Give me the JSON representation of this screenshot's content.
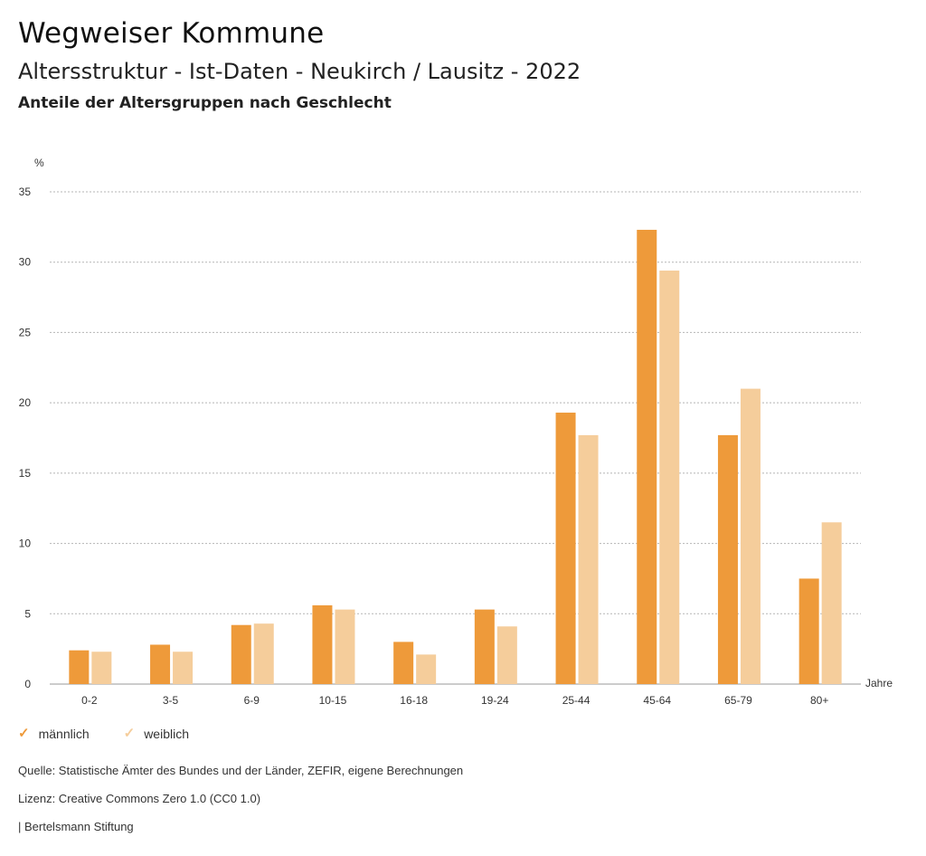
{
  "header": {
    "title": "Wegweiser Kommune",
    "subtitle": "Altersstruktur - Ist-Daten - Neukirch / Lausitz - 2022",
    "subsubtitle": "Anteile der Altersgruppen nach Geschlecht"
  },
  "chart_data": {
    "type": "bar",
    "ylabel": "%",
    "xlabel": "Jahre",
    "ylim": [
      0,
      35
    ],
    "yticks": [
      0,
      5,
      10,
      15,
      20,
      25,
      30,
      35
    ],
    "grid": true,
    "categories": [
      "0-2",
      "3-5",
      "6-9",
      "10-15",
      "16-18",
      "19-24",
      "25-44",
      "45-64",
      "65-79",
      "80+"
    ],
    "series": [
      {
        "name": "männlich",
        "color": "#ee9a3a",
        "values": [
          2.4,
          2.8,
          4.2,
          5.6,
          3.0,
          5.3,
          19.3,
          32.3,
          17.7,
          7.5
        ]
      },
      {
        "name": "weiblich",
        "color": "#f5cd9b",
        "values": [
          2.3,
          2.3,
          4.3,
          5.3,
          2.1,
          4.1,
          17.7,
          29.4,
          21.0,
          11.5
        ]
      }
    ],
    "legend_position": "bottom-left"
  },
  "legend": [
    {
      "label": "männlich",
      "color": "#ee9a3a",
      "icon": "check-icon"
    },
    {
      "label": "weiblich",
      "color": "#f5cd9b",
      "icon": "check-icon"
    }
  ],
  "footer": {
    "source": "Quelle: Statistische Ämter des Bundes und der Länder, ZEFIR, eigene Berechnungen",
    "license": "Lizenz: Creative Commons Zero 1.0 (CC0 1.0)",
    "credit": "| Bertelsmann Stiftung"
  }
}
